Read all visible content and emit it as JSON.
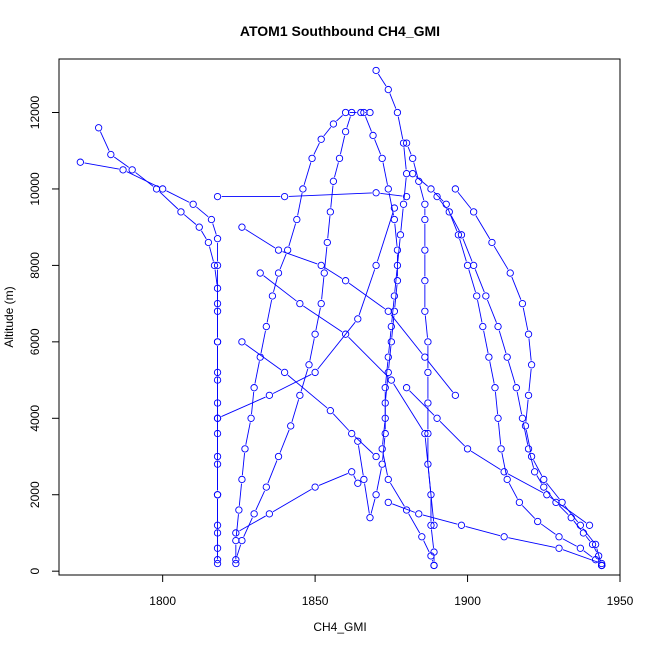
{
  "chart_data": {
    "type": "line",
    "title": "ATOM1 Southbound CH4_GMI",
    "xlabel": "CH4_GMI",
    "ylabel": "Altitude (m)",
    "xlim": [
      1766,
      1950
    ],
    "ylim": [
      -100,
      13400
    ],
    "xticks": [
      "1800",
      "1850",
      "1900",
      "1950"
    ],
    "yticks": [
      "0",
      "2000",
      "4000",
      "6000",
      "8000",
      "10000",
      "12000"
    ],
    "marker": "open-circle",
    "grid": false,
    "legend": "none",
    "color": "#0000ff",
    "series": [
      {
        "values": [
          [
            1818,
            200
          ],
          [
            1818,
            600
          ],
          [
            1818,
            1200
          ],
          [
            1818,
            2000
          ],
          [
            1818,
            2800
          ],
          [
            1818,
            3600
          ],
          [
            1818,
            4400
          ],
          [
            1818,
            5200
          ],
          [
            1818,
            6000
          ],
          [
            1818,
            6800
          ],
          [
            1818,
            7400
          ],
          [
            1817,
            8000
          ],
          [
            1815,
            8600
          ],
          [
            1812,
            9000
          ],
          [
            1806,
            9400
          ],
          [
            1798,
            10000
          ],
          [
            1790,
            10500
          ],
          [
            1783,
            10900
          ],
          [
            1779,
            11600
          ]
        ]
      },
      {
        "values": [
          [
            1773,
            10700
          ],
          [
            1787,
            10500
          ],
          [
            1800,
            10000
          ],
          [
            1810,
            9600
          ],
          [
            1816,
            9200
          ],
          [
            1818,
            8700
          ],
          [
            1818,
            8000
          ],
          [
            1818,
            7000
          ],
          [
            1818,
            6000
          ],
          [
            1818,
            5000
          ],
          [
            1818,
            4000
          ],
          [
            1818,
            3000
          ],
          [
            1818,
            2000
          ],
          [
            1818,
            1000
          ],
          [
            1818,
            300
          ]
        ]
      },
      {
        "values": [
          [
            1824,
            200
          ],
          [
            1824,
            800
          ],
          [
            1825,
            1600
          ],
          [
            1826,
            2400
          ],
          [
            1827,
            3200
          ],
          [
            1829,
            4000
          ],
          [
            1830,
            4800
          ],
          [
            1832,
            5600
          ],
          [
            1834,
            6400
          ],
          [
            1836,
            7200
          ],
          [
            1838,
            7800
          ],
          [
            1841,
            8400
          ],
          [
            1844,
            9200
          ],
          [
            1846,
            10000
          ],
          [
            1849,
            10800
          ],
          [
            1852,
            11300
          ],
          [
            1856,
            11700
          ],
          [
            1860,
            12000
          ],
          [
            1865,
            12000
          ],
          [
            1868,
            12000
          ]
        ]
      },
      {
        "values": [
          [
            1862,
            12000
          ],
          [
            1860,
            11500
          ],
          [
            1858,
            10800
          ],
          [
            1856,
            10200
          ],
          [
            1855,
            9400
          ],
          [
            1854,
            8600
          ],
          [
            1853,
            7800
          ],
          [
            1852,
            7000
          ],
          [
            1850,
            6200
          ],
          [
            1848,
            5400
          ],
          [
            1845,
            4600
          ],
          [
            1842,
            3800
          ],
          [
            1838,
            3000
          ],
          [
            1834,
            2200
          ],
          [
            1830,
            1500
          ],
          [
            1826,
            800
          ],
          [
            1824,
            300
          ]
        ]
      },
      {
        "values": [
          [
            1870,
            13100
          ],
          [
            1874,
            12600
          ],
          [
            1877,
            12000
          ],
          [
            1879,
            11200
          ],
          [
            1880,
            10400
          ],
          [
            1879,
            9600
          ],
          [
            1878,
            8800
          ],
          [
            1877,
            8000
          ],
          [
            1876,
            7200
          ],
          [
            1875,
            6400
          ],
          [
            1874,
            5600
          ],
          [
            1873,
            4800
          ],
          [
            1873,
            4000
          ],
          [
            1872,
            3200
          ],
          [
            1874,
            2400
          ],
          [
            1880,
            1600
          ],
          [
            1885,
            900
          ],
          [
            1888,
            400
          ],
          [
            1889,
            150
          ]
        ]
      },
      {
        "values": [
          [
            1866,
            12000
          ],
          [
            1869,
            11400
          ],
          [
            1872,
            10800
          ],
          [
            1874,
            10000
          ],
          [
            1876,
            9200
          ],
          [
            1877,
            8400
          ],
          [
            1877,
            7600
          ],
          [
            1876,
            6800
          ],
          [
            1875,
            6000
          ],
          [
            1874,
            5200
          ],
          [
            1873,
            4400
          ],
          [
            1873,
            3600
          ],
          [
            1872,
            2800
          ],
          [
            1870,
            2000
          ],
          [
            1868,
            1400
          ],
          [
            1866,
            2400
          ],
          [
            1864,
            3400
          ]
        ]
      },
      {
        "values": [
          [
            1889,
            150
          ],
          [
            1889,
            500
          ],
          [
            1888,
            1200
          ],
          [
            1888,
            2000
          ],
          [
            1887,
            2800
          ],
          [
            1887,
            3600
          ],
          [
            1887,
            4400
          ],
          [
            1887,
            5200
          ],
          [
            1887,
            6000
          ],
          [
            1886,
            6800
          ],
          [
            1886,
            7600
          ],
          [
            1886,
            8400
          ],
          [
            1886,
            9200
          ],
          [
            1886,
            9600
          ],
          [
            1884,
            10200
          ],
          [
            1882,
            10800
          ],
          [
            1880,
            11200
          ]
        ]
      },
      {
        "values": [
          [
            1890,
            9800
          ],
          [
            1894,
            9400
          ],
          [
            1898,
            8800
          ],
          [
            1902,
            8000
          ],
          [
            1906,
            7200
          ],
          [
            1910,
            6400
          ],
          [
            1913,
            5600
          ],
          [
            1916,
            4800
          ],
          [
            1918,
            4000
          ],
          [
            1920,
            3200
          ],
          [
            1922,
            2600
          ],
          [
            1925,
            2200
          ],
          [
            1929,
            1800
          ],
          [
            1934,
            1400
          ],
          [
            1938,
            1000
          ],
          [
            1941,
            700
          ],
          [
            1943,
            400
          ],
          [
            1944,
            150
          ]
        ]
      },
      {
        "values": [
          [
            1882,
            10400
          ],
          [
            1888,
            10000
          ],
          [
            1893,
            9600
          ],
          [
            1897,
            8800
          ],
          [
            1900,
            8000
          ],
          [
            1903,
            7200
          ],
          [
            1905,
            6400
          ],
          [
            1907,
            5600
          ],
          [
            1909,
            4800
          ],
          [
            1910,
            4000
          ],
          [
            1911,
            3200
          ],
          [
            1913,
            2400
          ],
          [
            1917,
            1800
          ],
          [
            1923,
            1300
          ],
          [
            1930,
            900
          ],
          [
            1937,
            600
          ],
          [
            1942,
            300
          ],
          [
            1944,
            150
          ]
        ]
      },
      {
        "values": [
          [
            1896,
            10000
          ],
          [
            1902,
            9400
          ],
          [
            1908,
            8600
          ],
          [
            1914,
            7800
          ],
          [
            1918,
            7000
          ],
          [
            1920,
            6200
          ],
          [
            1921,
            5400
          ],
          [
            1920,
            4600
          ],
          [
            1919,
            3800
          ],
          [
            1921,
            3000
          ],
          [
            1925,
            2400
          ],
          [
            1931,
            1800
          ],
          [
            1937,
            1200
          ],
          [
            1942,
            700
          ],
          [
            1944,
            150
          ]
        ]
      },
      {
        "values": [
          [
            1818,
            9800
          ],
          [
            1840,
            9800
          ],
          [
            1870,
            9900
          ],
          [
            1880,
            9800
          ]
        ]
      },
      {
        "values": [
          [
            1832,
            7800
          ],
          [
            1845,
            7000
          ],
          [
            1860,
            6200
          ],
          [
            1875,
            5000
          ],
          [
            1886,
            3600
          ],
          [
            1889,
            1200
          ]
        ]
      },
      {
        "values": [
          [
            1824,
            1000
          ],
          [
            1835,
            1500
          ],
          [
            1850,
            2200
          ],
          [
            1862,
            2600
          ],
          [
            1864,
            2300
          ]
        ]
      },
      {
        "values": [
          [
            1826,
            6000
          ],
          [
            1840,
            5200
          ],
          [
            1855,
            4200
          ],
          [
            1862,
            3600
          ],
          [
            1870,
            3000
          ]
        ]
      },
      {
        "values": [
          [
            1874,
            1800
          ],
          [
            1884,
            1500
          ],
          [
            1898,
            1200
          ],
          [
            1912,
            900
          ],
          [
            1930,
            600
          ],
          [
            1944,
            200
          ]
        ]
      },
      {
        "values": [
          [
            1818,
            4000
          ],
          [
            1835,
            4600
          ],
          [
            1850,
            5200
          ],
          [
            1864,
            6600
          ],
          [
            1870,
            8000
          ],
          [
            1876,
            9500
          ]
        ]
      },
      {
        "values": [
          [
            1880,
            4800
          ],
          [
            1890,
            4000
          ],
          [
            1900,
            3200
          ],
          [
            1912,
            2600
          ],
          [
            1926,
            2000
          ],
          [
            1940,
            1200
          ]
        ]
      },
      {
        "values": [
          [
            1826,
            9000
          ],
          [
            1838,
            8400
          ],
          [
            1852,
            8000
          ],
          [
            1860,
            7600
          ],
          [
            1874,
            6800
          ],
          [
            1886,
            5600
          ],
          [
            1896,
            4600
          ]
        ]
      }
    ]
  }
}
